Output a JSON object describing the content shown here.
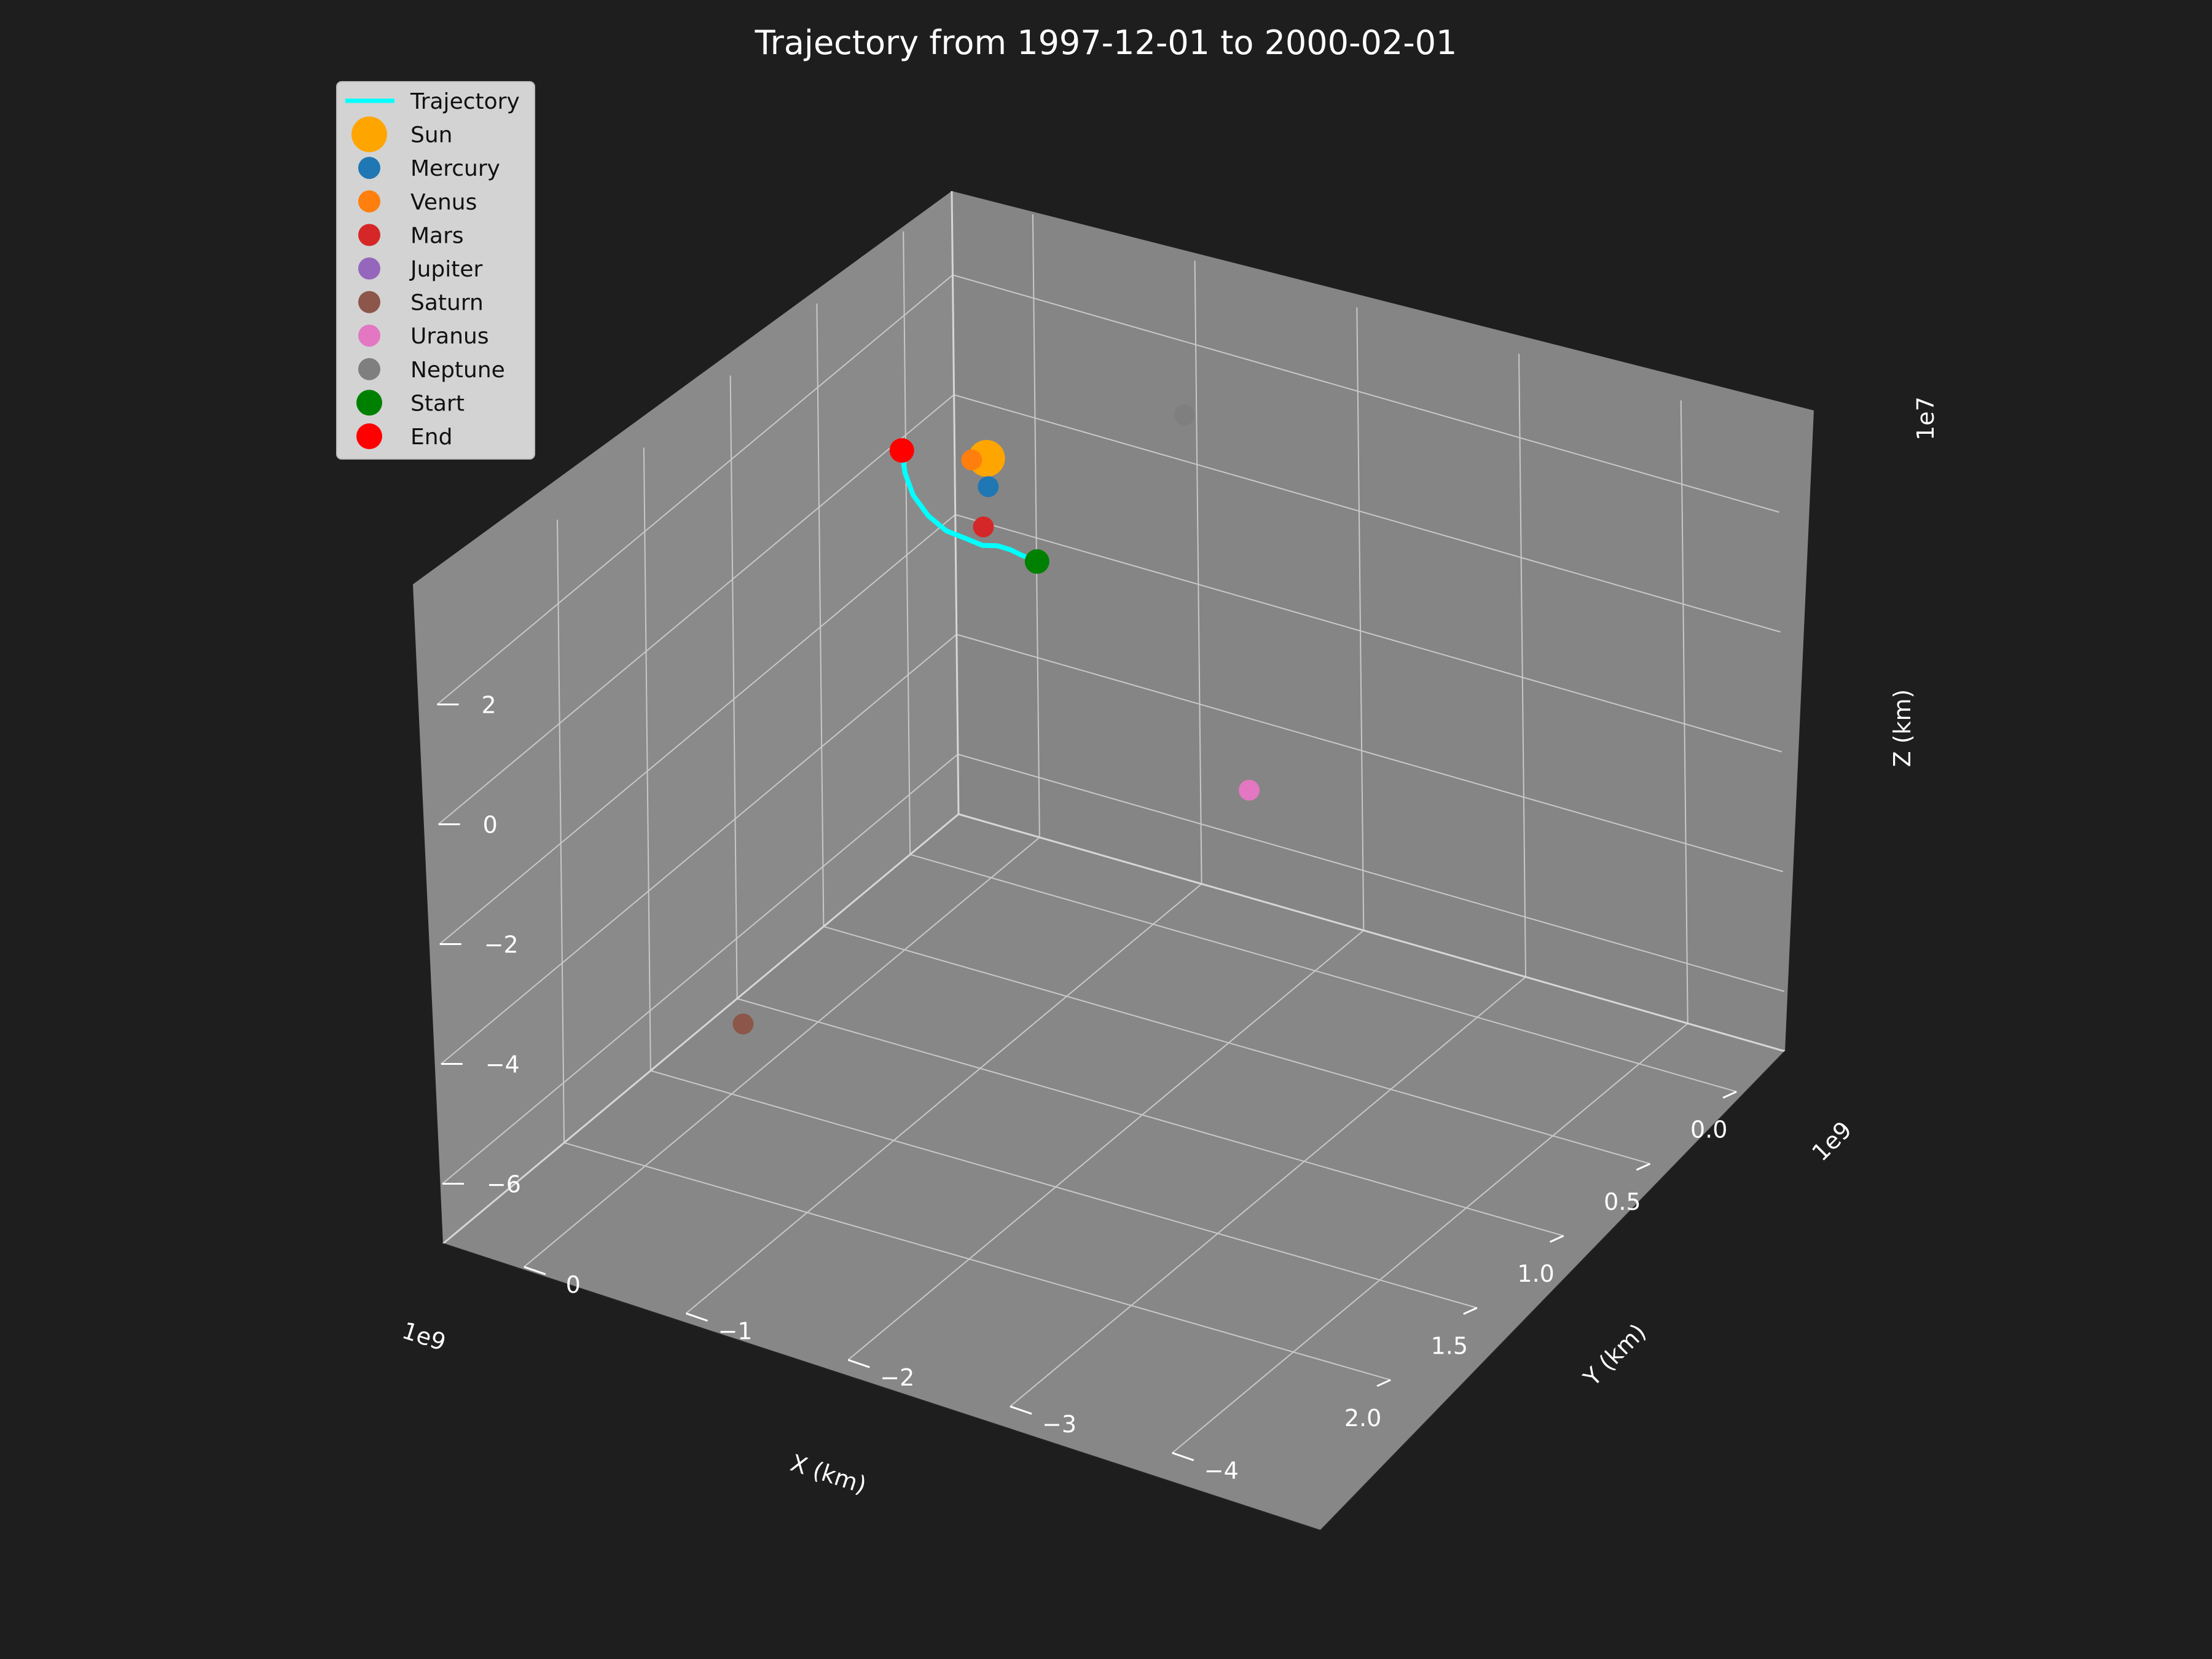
{
  "chart_data": {
    "type": "scatter",
    "title": "Trajectory from 1997-12-01 to 2000-02-01",
    "axes": {
      "x": {
        "label": "X (km)",
        "offset_text": "1e9",
        "ticks": [
          0.0,
          0.5,
          1.0,
          1.5,
          2.0
        ],
        "tick_labels": [
          "0.0",
          "0.5",
          "1.0",
          "1.5",
          "2.0"
        ]
      },
      "y": {
        "label": "Y (km)",
        "offset_text": "1e9",
        "ticks": [
          0,
          -1,
          -2,
          -3,
          -4
        ],
        "tick_labels": [
          "0",
          "−1",
          "−2",
          "−3",
          "−4"
        ]
      },
      "z": {
        "label": "Z (km)",
        "offset_text": "1e7",
        "ticks": [
          2,
          0,
          -2,
          -4,
          -6
        ],
        "tick_labels": [
          "2",
          "0",
          "−2",
          "−4",
          "−6"
        ]
      }
    },
    "grid": true,
    "legend_position": "top-left",
    "series": [
      {
        "name": "Trajectory",
        "kind": "line",
        "color": "#00ffff",
        "x": [
          0.55,
          0.57,
          0.59,
          0.62,
          0.64,
          0.66,
          0.68,
          0.69,
          0.7,
          0.69,
          0.67
        ],
        "y": [
          -0.9,
          -0.82,
          -0.78,
          -0.73,
          -0.66,
          -0.58,
          -0.48,
          -0.38,
          -0.3,
          -0.24,
          -0.2
        ],
        "z": [
          0.3,
          0.4,
          0.5,
          0.6,
          0.6,
          0.7,
          0.8,
          1.0,
          1.3,
          1.6,
          1.9
        ]
      },
      {
        "name": "Sun",
        "kind": "point",
        "color": "#ffa500",
        "size": "large",
        "x": 0.0,
        "y": 0.0,
        "z": 0.0
      },
      {
        "name": "Mercury",
        "kind": "point",
        "color": "#1f77b4",
        "x": 0.02,
        "y": -0.03,
        "z": -0.4
      },
      {
        "name": "Venus",
        "kind": "point",
        "color": "#ff7f0e",
        "x": 0.03,
        "y": 0.06,
        "z": 0.0
      },
      {
        "name": "Mars",
        "kind": "point",
        "color": "#d62728",
        "x": 0.05,
        "y": -0.03,
        "z": -1.0
      },
      {
        "name": "Jupiter",
        "kind": "point",
        "color": "#9467bd",
        "x": null,
        "y": null,
        "z": null
      },
      {
        "name": "Saturn",
        "kind": "point",
        "color": "#8c564b",
        "x": 1.8,
        "y": -0.4,
        "z": -4.8
      },
      {
        "name": "Uranus",
        "kind": "point",
        "color": "#e377c2",
        "x": 1.2,
        "y": -2.9,
        "z": -0.4
      },
      {
        "name": "Neptune",
        "kind": "point",
        "color": "#7f7f7f",
        "x": 0.9,
        "y": -2.2,
        "z": 4.6
      },
      {
        "name": "Start",
        "kind": "point",
        "color": "#008000",
        "size": "medium",
        "x": 0.55,
        "y": -0.9,
        "z": 0.3
      },
      {
        "name": "End",
        "kind": "point",
        "color": "#ff0000",
        "size": "medium",
        "x": 0.67,
        "y": -0.2,
        "z": 1.9
      }
    ]
  }
}
